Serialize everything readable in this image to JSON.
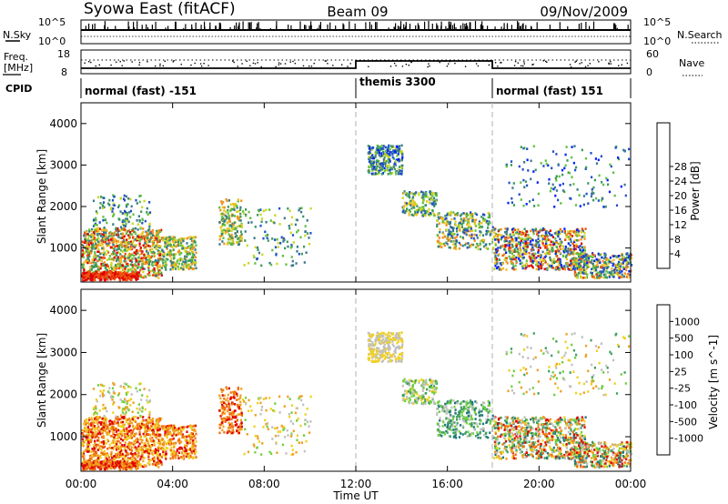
{
  "header": {
    "radar": "Syowa East (fitACF)",
    "beam": "Beam 09",
    "date": "09/Nov/2009"
  },
  "panels": {
    "nsky_label": "N.Sky",
    "nsky_ticks": [
      "10^5",
      "10^0"
    ],
    "nsearch_label": "N.Search",
    "nsearch_ticks": [
      "10^5",
      "10^0"
    ],
    "freq_label": [
      "Freq.",
      "[MHz]"
    ],
    "freq_ticks": [
      "18",
      "8"
    ],
    "nave_label": "Nave",
    "nave_ticks": [
      "60",
      "0"
    ],
    "cpid_label": "CPID",
    "cpid_segments": [
      "normal (fast) -151",
      "themis 3300",
      "normal (fast) 151"
    ]
  },
  "colors": {
    "power": [
      "#0020ff",
      "#2050c8",
      "#3a7a8c",
      "#3c9a5a",
      "#60c040",
      "#c8d820",
      "#f0c020",
      "#f09020",
      "#f05010",
      "#e00000"
    ],
    "velocity": [
      "#2040c0",
      "#207878",
      "#40a060",
      "#70d040",
      "#c0c0c0",
      "#f0d020",
      "#f0a020",
      "#f07010",
      "#e00000"
    ],
    "gray_dash": "#b0b0b0"
  },
  "chart_data": [
    {
      "type": "heatmap",
      "name": "power",
      "xlabel": "",
      "ylabel": "Slant Range [km]",
      "x_ticks": [
        "00:00",
        "04:00",
        "08:00",
        "12:00",
        "16:00",
        "20:00",
        "00:00"
      ],
      "xlim": [
        0,
        24
      ],
      "ylim": [
        180,
        4500
      ],
      "y_ticks": [
        "1000",
        "2000",
        "3000",
        "4000"
      ],
      "colorbar_label": "Power [dB]",
      "colorbar_ticks": [
        "4",
        "8",
        "12",
        "16",
        "20",
        "24",
        "28"
      ],
      "mode_boundaries_hours": [
        12,
        18
      ]
    },
    {
      "type": "heatmap",
      "name": "velocity",
      "xlabel": "Time UT",
      "ylabel": "Slant Range [km]",
      "x_ticks": [
        "00:00",
        "04:00",
        "08:00",
        "12:00",
        "16:00",
        "20:00",
        "00:00"
      ],
      "xlim": [
        0,
        24
      ],
      "ylim": [
        180,
        4500
      ],
      "y_ticks": [
        "1000",
        "2000",
        "3000",
        "4000"
      ],
      "colorbar_label": "Velocity [m s^-1]",
      "colorbar_ticks": [
        "1000",
        "500",
        "100",
        "25",
        "-25",
        "-100",
        "-500",
        "-1000"
      ],
      "mode_boundaries_hours": [
        12,
        18
      ]
    }
  ]
}
